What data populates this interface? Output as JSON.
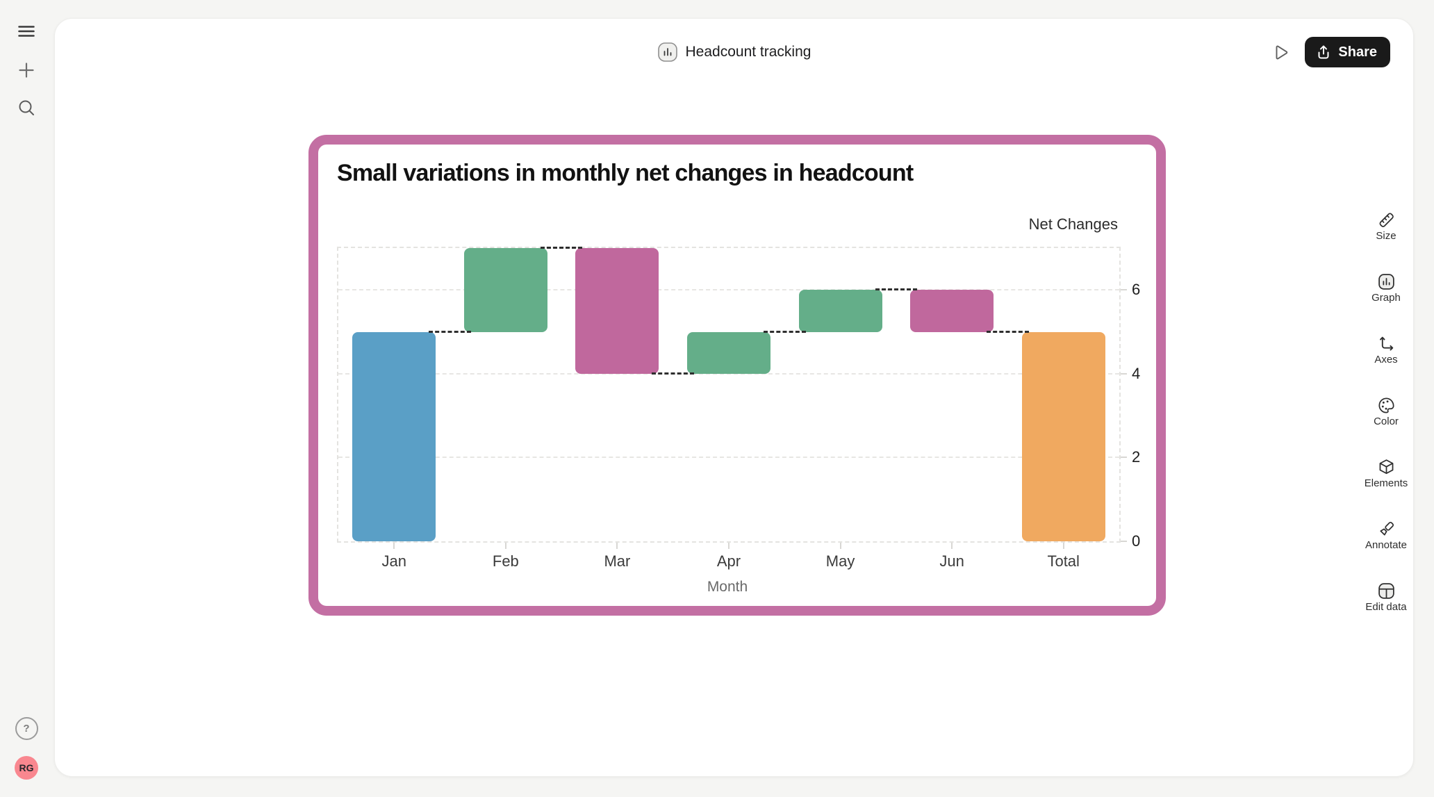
{
  "header": {
    "title": "Headcount tracking",
    "share_label": "Share",
    "share_button_bg": "#1a1a1a"
  },
  "left_rail": {
    "help_glyph": "?",
    "avatar_initials": "RG",
    "avatar_bg": "#f9878f"
  },
  "toolbar": {
    "items": [
      {
        "label": "Size",
        "icon": "ruler-icon"
      },
      {
        "label": "Graph",
        "icon": "bar-chart-icon"
      },
      {
        "label": "Axes",
        "icon": "axes-icon"
      },
      {
        "label": "Color",
        "icon": "palette-icon"
      },
      {
        "label": "Elements",
        "icon": "cube-icon"
      },
      {
        "label": "Annotate",
        "icon": "marker-icon"
      },
      {
        "label": "Edit data",
        "icon": "table-icon"
      }
    ]
  },
  "chart_data": {
    "type": "waterfall",
    "title": "Small variations in monthly net changes in headcount",
    "xlabel": "Month",
    "ylabel": "Net Changes",
    "categories": [
      "Jan",
      "Feb",
      "Mar",
      "Apr",
      "May",
      "Jun",
      "Total"
    ],
    "bars": [
      {
        "label": "Jan",
        "start": 0,
        "end": 5,
        "change": 5,
        "kind": "initial",
        "color": "#5a9fc6"
      },
      {
        "label": "Feb",
        "start": 5,
        "end": 7,
        "change": 2,
        "kind": "increase",
        "color": "#64ae89"
      },
      {
        "label": "Mar",
        "start": 7,
        "end": 4,
        "change": -3,
        "kind": "decrease",
        "color": "#c0689d"
      },
      {
        "label": "Apr",
        "start": 4,
        "end": 5,
        "change": 1,
        "kind": "increase",
        "color": "#64ae89"
      },
      {
        "label": "May",
        "start": 5,
        "end": 6,
        "change": 1,
        "kind": "increase",
        "color": "#64ae89"
      },
      {
        "label": "Jun",
        "start": 6,
        "end": 5,
        "change": -1,
        "kind": "decrease",
        "color": "#c0689d"
      },
      {
        "label": "Total",
        "start": 0,
        "end": 5,
        "change": 5,
        "kind": "total",
        "color": "#f0a960"
      }
    ],
    "y_ticks": [
      0,
      2,
      4,
      6
    ],
    "ylim": [
      0,
      7
    ],
    "grid": "dashed",
    "legend": "none",
    "frame_color": "#c36fa3",
    "connector_color": "#2e2e2e"
  }
}
